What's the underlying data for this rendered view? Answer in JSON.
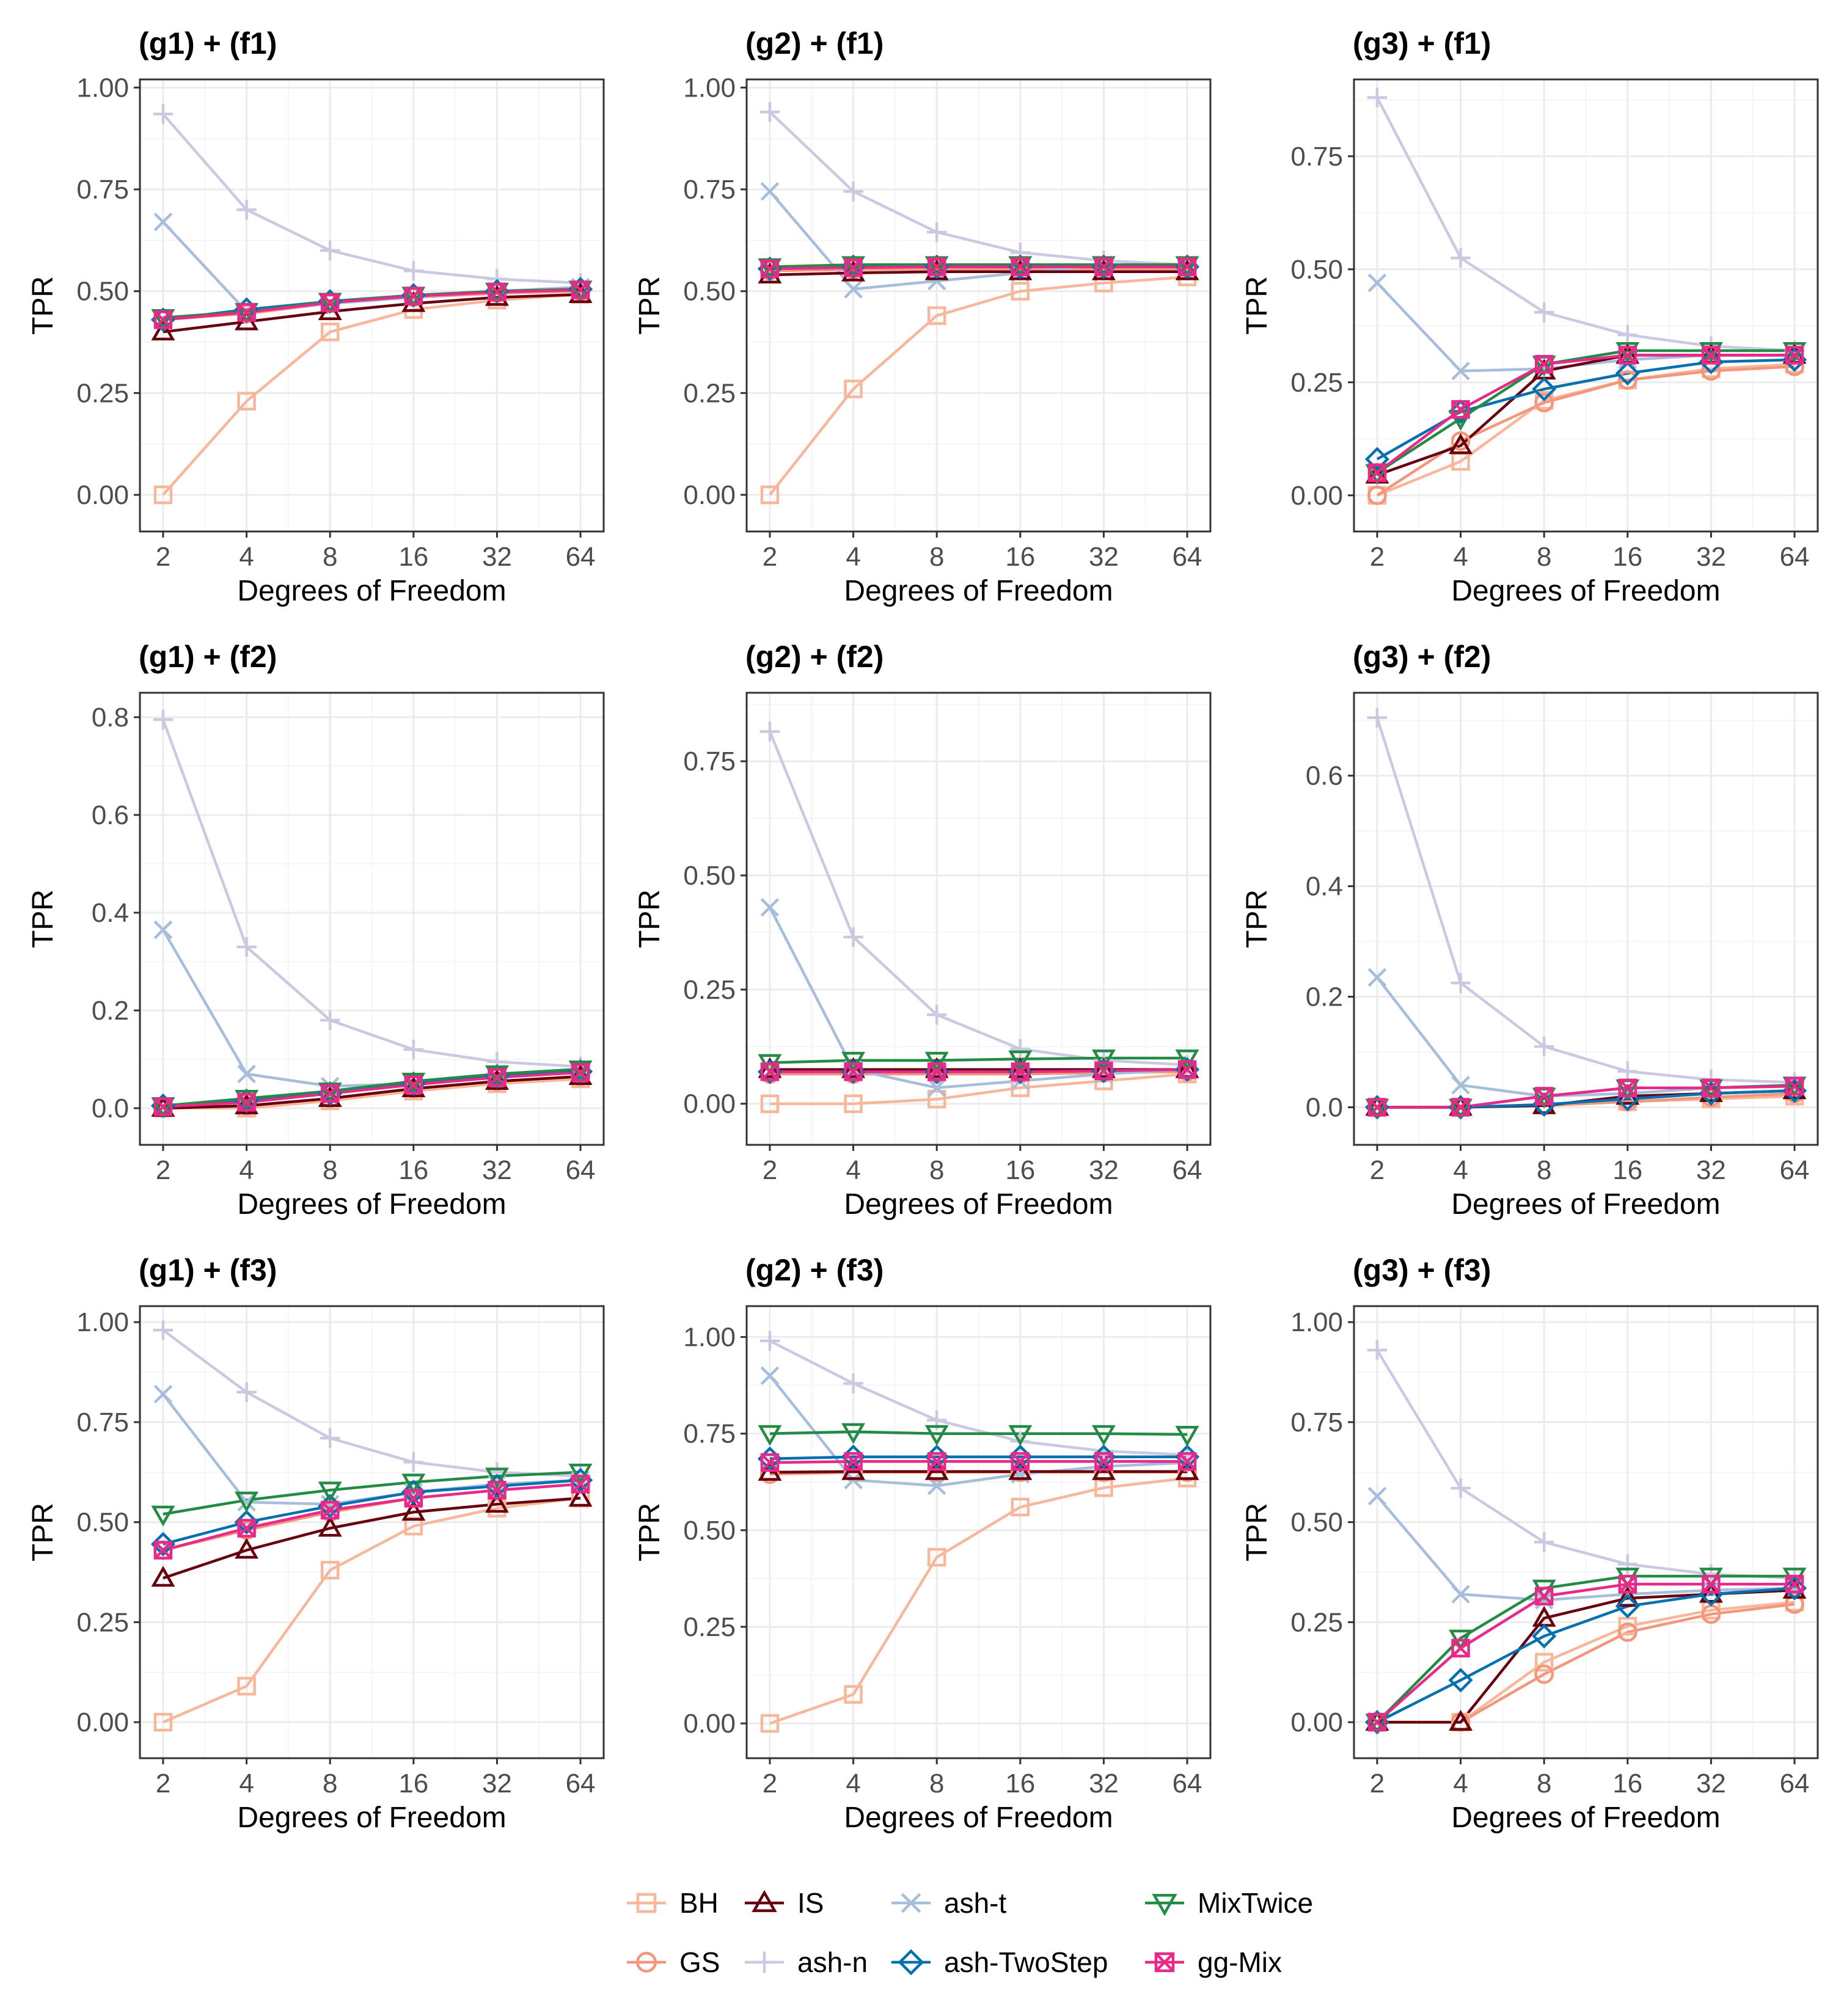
{
  "legend": {
    "items": [
      {
        "name": "BH",
        "color": "#F7B79B",
        "shape": "square"
      },
      {
        "name": "IS",
        "color": "#67000D",
        "shape": "triangle-up"
      },
      {
        "name": "ash-t",
        "color": "#A6BDDB",
        "shape": "x"
      },
      {
        "name": "MixTwice",
        "color": "#238B45",
        "shape": "triangle-down"
      },
      {
        "name": "GS",
        "color": "#F4967B",
        "shape": "circle"
      },
      {
        "name": "ash-n",
        "color": "#CBC9E2",
        "shape": "plus"
      },
      {
        "name": "ash-TwoStep",
        "color": "#0570B0",
        "shape": "diamond"
      },
      {
        "name": "gg-Mix",
        "color": "#E7298A",
        "shape": "square-x"
      }
    ]
  },
  "chart_data": [
    {
      "type": "line",
      "title": "(g1) + (f1)",
      "xlabel": "Degrees of Freedom",
      "ylabel": "TPR",
      "categories": [
        "2",
        "4",
        "8",
        "16",
        "32",
        "64"
      ],
      "ylim": [
        -0.09,
        1.02
      ],
      "yticks": [
        0.0,
        0.25,
        0.5,
        0.75,
        1.0
      ],
      "ytick_labels": [
        "0.00",
        "0.25",
        "0.50",
        "0.75",
        "1.00"
      ],
      "series": [
        {
          "name": "BH",
          "values": [
            0.0,
            0.23,
            0.4,
            0.455,
            0.478,
            0.492
          ]
        },
        {
          "name": "GS",
          "values": [
            0.43,
            0.445,
            0.47,
            0.485,
            0.495,
            0.5
          ]
        },
        {
          "name": "IS",
          "values": [
            0.4,
            0.425,
            0.45,
            0.47,
            0.485,
            0.492
          ]
        },
        {
          "name": "ash-n",
          "values": [
            0.935,
            0.7,
            0.6,
            0.55,
            0.53,
            0.52
          ]
        },
        {
          "name": "ash-t",
          "values": [
            0.67,
            0.45,
            0.47,
            0.485,
            0.5,
            0.51
          ]
        },
        {
          "name": "ash-TwoStep",
          "values": [
            0.43,
            0.455,
            0.475,
            0.49,
            0.5,
            0.505
          ]
        },
        {
          "name": "MixTwice",
          "values": [
            0.435,
            0.45,
            0.475,
            0.49,
            0.5,
            0.505
          ]
        },
        {
          "name": "gg-Mix",
          "values": [
            0.43,
            0.448,
            0.472,
            0.488,
            0.498,
            0.503
          ]
        }
      ]
    },
    {
      "type": "line",
      "title": "(g2) + (f1)",
      "xlabel": "Degrees of Freedom",
      "ylabel": "TPR",
      "categories": [
        "2",
        "4",
        "8",
        "16",
        "32",
        "64"
      ],
      "ylim": [
        -0.09,
        1.02
      ],
      "yticks": [
        0.0,
        0.25,
        0.5,
        0.75,
        1.0
      ],
      "ytick_labels": [
        "0.00",
        "0.25",
        "0.50",
        "0.75",
        "1.00"
      ],
      "series": [
        {
          "name": "BH",
          "values": [
            0.0,
            0.26,
            0.44,
            0.5,
            0.52,
            0.535
          ]
        },
        {
          "name": "GS",
          "values": [
            0.55,
            0.553,
            0.555,
            0.555,
            0.555,
            0.555
          ]
        },
        {
          "name": "IS",
          "values": [
            0.54,
            0.545,
            0.548,
            0.548,
            0.548,
            0.548
          ]
        },
        {
          "name": "ash-n",
          "values": [
            0.94,
            0.745,
            0.645,
            0.595,
            0.575,
            0.565
          ]
        },
        {
          "name": "ash-t",
          "values": [
            0.745,
            0.505,
            0.525,
            0.545,
            0.565,
            0.565
          ]
        },
        {
          "name": "ash-TwoStep",
          "values": [
            0.555,
            0.56,
            0.56,
            0.56,
            0.56,
            0.56
          ]
        },
        {
          "name": "MixTwice",
          "values": [
            0.56,
            0.565,
            0.565,
            0.565,
            0.565,
            0.565
          ]
        },
        {
          "name": "gg-Mix",
          "values": [
            0.555,
            0.558,
            0.56,
            0.56,
            0.56,
            0.56
          ]
        }
      ]
    },
    {
      "type": "line",
      "title": "(g3) + (f1)",
      "xlabel": "Degrees of Freedom",
      "ylabel": "TPR",
      "categories": [
        "2",
        "4",
        "8",
        "16",
        "32",
        "64"
      ],
      "ylim": [
        -0.08,
        0.92
      ],
      "yticks": [
        0.0,
        0.25,
        0.5,
        0.75
      ],
      "ytick_labels": [
        "0.00",
        "0.25",
        "0.50",
        "0.75"
      ],
      "series": [
        {
          "name": "BH",
          "values": [
            0.0,
            0.075,
            0.21,
            0.255,
            0.28,
            0.29
          ]
        },
        {
          "name": "GS",
          "values": [
            0.0,
            0.12,
            0.205,
            0.255,
            0.275,
            0.285
          ]
        },
        {
          "name": "IS",
          "values": [
            0.045,
            0.11,
            0.275,
            0.31,
            0.31,
            0.31
          ]
        },
        {
          "name": "ash-n",
          "values": [
            0.88,
            0.525,
            0.405,
            0.355,
            0.33,
            0.32
          ]
        },
        {
          "name": "ash-t",
          "values": [
            0.47,
            0.275,
            0.28,
            0.3,
            0.31,
            0.31
          ]
        },
        {
          "name": "ash-TwoStep",
          "values": [
            0.08,
            0.185,
            0.235,
            0.27,
            0.295,
            0.3
          ]
        },
        {
          "name": "MixTwice",
          "values": [
            0.05,
            0.17,
            0.29,
            0.32,
            0.32,
            0.32
          ]
        },
        {
          "name": "gg-Mix",
          "values": [
            0.05,
            0.19,
            0.29,
            0.31,
            0.31,
            0.31
          ]
        }
      ]
    },
    {
      "type": "line",
      "title": "(g1) + (f2)",
      "xlabel": "Degrees of Freedom",
      "ylabel": "TPR",
      "categories": [
        "2",
        "4",
        "8",
        "16",
        "32",
        "64"
      ],
      "ylim": [
        -0.075,
        0.85
      ],
      "yticks": [
        0.0,
        0.2,
        0.4,
        0.6,
        0.8
      ],
      "ytick_labels": [
        "0.0",
        "0.2",
        "0.4",
        "0.6",
        "0.8"
      ],
      "series": [
        {
          "name": "BH",
          "values": [
            0.0,
            0.0,
            0.015,
            0.035,
            0.05,
            0.06
          ]
        },
        {
          "name": "GS",
          "values": [
            0.0,
            0.005,
            0.02,
            0.04,
            0.055,
            0.065
          ]
        },
        {
          "name": "IS",
          "values": [
            0.0,
            0.005,
            0.02,
            0.04,
            0.055,
            0.065
          ]
        },
        {
          "name": "ash-n",
          "values": [
            0.795,
            0.33,
            0.18,
            0.12,
            0.095,
            0.085
          ]
        },
        {
          "name": "ash-t",
          "values": [
            0.365,
            0.07,
            0.045,
            0.05,
            0.065,
            0.075
          ]
        },
        {
          "name": "ash-TwoStep",
          "values": [
            0.005,
            0.015,
            0.03,
            0.05,
            0.065,
            0.075
          ]
        },
        {
          "name": "MixTwice",
          "values": [
            0.005,
            0.02,
            0.035,
            0.055,
            0.07,
            0.08
          ]
        },
        {
          "name": "gg-Mix",
          "values": [
            0.003,
            0.012,
            0.03,
            0.048,
            0.063,
            0.073
          ]
        }
      ]
    },
    {
      "type": "line",
      "title": "(g2) + (f2)",
      "xlabel": "Degrees of Freedom",
      "ylabel": "TPR",
      "categories": [
        "2",
        "4",
        "8",
        "16",
        "32",
        "64"
      ],
      "ylim": [
        -0.09,
        0.9
      ],
      "yticks": [
        0.0,
        0.25,
        0.5,
        0.75
      ],
      "ytick_labels": [
        "0.00",
        "0.25",
        "0.50",
        "0.75"
      ],
      "series": [
        {
          "name": "BH",
          "values": [
            0.0,
            0.0,
            0.01,
            0.035,
            0.05,
            0.065
          ]
        },
        {
          "name": "GS",
          "values": [
            0.065,
            0.065,
            0.065,
            0.065,
            0.068,
            0.07
          ]
        },
        {
          "name": "IS",
          "values": [
            0.075,
            0.075,
            0.075,
            0.075,
            0.075,
            0.075
          ]
        },
        {
          "name": "ash-n",
          "values": [
            0.815,
            0.365,
            0.195,
            0.12,
            0.095,
            0.085
          ]
        },
        {
          "name": "ash-t",
          "values": [
            0.43,
            0.075,
            0.035,
            0.05,
            0.065,
            0.075
          ]
        },
        {
          "name": "ash-TwoStep",
          "values": [
            0.07,
            0.07,
            0.07,
            0.07,
            0.072,
            0.075
          ]
        },
        {
          "name": "MixTwice",
          "values": [
            0.09,
            0.095,
            0.095,
            0.098,
            0.1,
            0.1
          ]
        },
        {
          "name": "gg-Mix",
          "values": [
            0.07,
            0.07,
            0.07,
            0.07,
            0.072,
            0.075
          ]
        }
      ]
    },
    {
      "type": "line",
      "title": "(g3) + (f2)",
      "xlabel": "Degrees of Freedom",
      "ylabel": "TPR",
      "categories": [
        "2",
        "4",
        "8",
        "16",
        "32",
        "64"
      ],
      "ylim": [
        -0.068,
        0.75
      ],
      "yticks": [
        0.0,
        0.2,
        0.4,
        0.6
      ],
      "ytick_labels": [
        "0.0",
        "0.2",
        "0.4",
        "0.6"
      ],
      "series": [
        {
          "name": "BH",
          "values": [
            0.0,
            0.0,
            0.005,
            0.01,
            0.015,
            0.02
          ]
        },
        {
          "name": "GS",
          "values": [
            0.0,
            0.0,
            0.003,
            0.01,
            0.018,
            0.025
          ]
        },
        {
          "name": "IS",
          "values": [
            0.0,
            0.0,
            0.003,
            0.02,
            0.025,
            0.03
          ]
        },
        {
          "name": "ash-n",
          "values": [
            0.705,
            0.225,
            0.11,
            0.065,
            0.05,
            0.045
          ]
        },
        {
          "name": "ash-t",
          "values": [
            0.235,
            0.04,
            0.02,
            0.025,
            0.035,
            0.04
          ]
        },
        {
          "name": "ash-TwoStep",
          "values": [
            0.0,
            0.0,
            0.005,
            0.015,
            0.025,
            0.03
          ]
        },
        {
          "name": "MixTwice",
          "values": [
            0.0,
            0.0,
            0.02,
            0.035,
            0.035,
            0.04
          ]
        },
        {
          "name": "gg-Mix",
          "values": [
            0.0,
            0.0,
            0.02,
            0.035,
            0.035,
            0.038
          ]
        }
      ]
    },
    {
      "type": "line",
      "title": "(g1) + (f3)",
      "xlabel": "Degrees of Freedom",
      "ylabel": "TPR",
      "categories": [
        "2",
        "4",
        "8",
        "16",
        "32",
        "64"
      ],
      "ylim": [
        -0.09,
        1.04
      ],
      "yticks": [
        0.0,
        0.25,
        0.5,
        0.75,
        1.0
      ],
      "ytick_labels": [
        "0.00",
        "0.25",
        "0.50",
        "0.75",
        "1.00"
      ],
      "series": [
        {
          "name": "BH",
          "values": [
            0.0,
            0.09,
            0.38,
            0.49,
            0.535,
            0.56
          ]
        },
        {
          "name": "GS",
          "values": [
            0.43,
            0.48,
            0.525,
            0.56,
            0.58,
            0.595
          ]
        },
        {
          "name": "IS",
          "values": [
            0.36,
            0.43,
            0.485,
            0.525,
            0.545,
            0.56
          ]
        },
        {
          "name": "ash-n",
          "values": [
            0.98,
            0.825,
            0.71,
            0.65,
            0.625,
            0.615
          ]
        },
        {
          "name": "ash-t",
          "values": [
            0.82,
            0.55,
            0.545,
            0.575,
            0.595,
            0.605
          ]
        },
        {
          "name": "ash-TwoStep",
          "values": [
            0.445,
            0.5,
            0.54,
            0.575,
            0.59,
            0.605
          ]
        },
        {
          "name": "MixTwice",
          "values": [
            0.52,
            0.555,
            0.58,
            0.6,
            0.615,
            0.625
          ]
        },
        {
          "name": "gg-Mix",
          "values": [
            0.43,
            0.485,
            0.53,
            0.56,
            0.58,
            0.595
          ]
        }
      ]
    },
    {
      "type": "line",
      "title": "(g2) + (f3)",
      "xlabel": "Degrees of Freedom",
      "ylabel": "TPR",
      "categories": [
        "2",
        "4",
        "8",
        "16",
        "32",
        "64"
      ],
      "ylim": [
        -0.09,
        1.08
      ],
      "yticks": [
        0.0,
        0.25,
        0.5,
        0.75,
        1.0
      ],
      "ytick_labels": [
        "0.00",
        "0.25",
        "0.50",
        "0.75",
        "1.00"
      ],
      "series": [
        {
          "name": "BH",
          "values": [
            0.0,
            0.075,
            0.43,
            0.56,
            0.61,
            0.635
          ]
        },
        {
          "name": "GS",
          "values": [
            0.645,
            0.65,
            0.65,
            0.65,
            0.65,
            0.65
          ]
        },
        {
          "name": "IS",
          "values": [
            0.65,
            0.652,
            0.652,
            0.652,
            0.652,
            0.652
          ]
        },
        {
          "name": "ash-n",
          "values": [
            0.99,
            0.88,
            0.785,
            0.73,
            0.705,
            0.695
          ]
        },
        {
          "name": "ash-t",
          "values": [
            0.9,
            0.63,
            0.615,
            0.645,
            0.665,
            0.675
          ]
        },
        {
          "name": "ash-TwoStep",
          "values": [
            0.685,
            0.69,
            0.69,
            0.69,
            0.69,
            0.69
          ]
        },
        {
          "name": "MixTwice",
          "values": [
            0.75,
            0.755,
            0.75,
            0.75,
            0.75,
            0.748
          ]
        },
        {
          "name": "gg-Mix",
          "values": [
            0.675,
            0.678,
            0.678,
            0.678,
            0.678,
            0.678
          ]
        }
      ]
    },
    {
      "type": "line",
      "title": "(g3) + (f3)",
      "xlabel": "Degrees of Freedom",
      "ylabel": "TPR",
      "categories": [
        "2",
        "4",
        "8",
        "16",
        "32",
        "64"
      ],
      "ylim": [
        -0.09,
        1.04
      ],
      "yticks": [
        0.0,
        0.25,
        0.5,
        0.75,
        1.0
      ],
      "ytick_labels": [
        "0.00",
        "0.25",
        "0.50",
        "0.75",
        "1.00"
      ],
      "series": [
        {
          "name": "BH",
          "values": [
            0.0,
            0.0,
            0.15,
            0.24,
            0.28,
            0.3
          ]
        },
        {
          "name": "GS",
          "values": [
            0.0,
            0.0,
            0.12,
            0.225,
            0.27,
            0.295
          ]
        },
        {
          "name": "IS",
          "values": [
            0.0,
            0.0,
            0.26,
            0.31,
            0.32,
            0.33
          ]
        },
        {
          "name": "ash-n",
          "values": [
            0.93,
            0.585,
            0.45,
            0.395,
            0.37,
            0.36
          ]
        },
        {
          "name": "ash-t",
          "values": [
            0.565,
            0.32,
            0.305,
            0.32,
            0.33,
            0.335
          ]
        },
        {
          "name": "ash-TwoStep",
          "values": [
            0.0,
            0.105,
            0.215,
            0.29,
            0.32,
            0.335
          ]
        },
        {
          "name": "MixTwice",
          "values": [
            0.0,
            0.21,
            0.335,
            0.365,
            0.365,
            0.365
          ]
        },
        {
          "name": "gg-Mix",
          "values": [
            0.0,
            0.185,
            0.315,
            0.345,
            0.345,
            0.345
          ]
        }
      ]
    }
  ]
}
